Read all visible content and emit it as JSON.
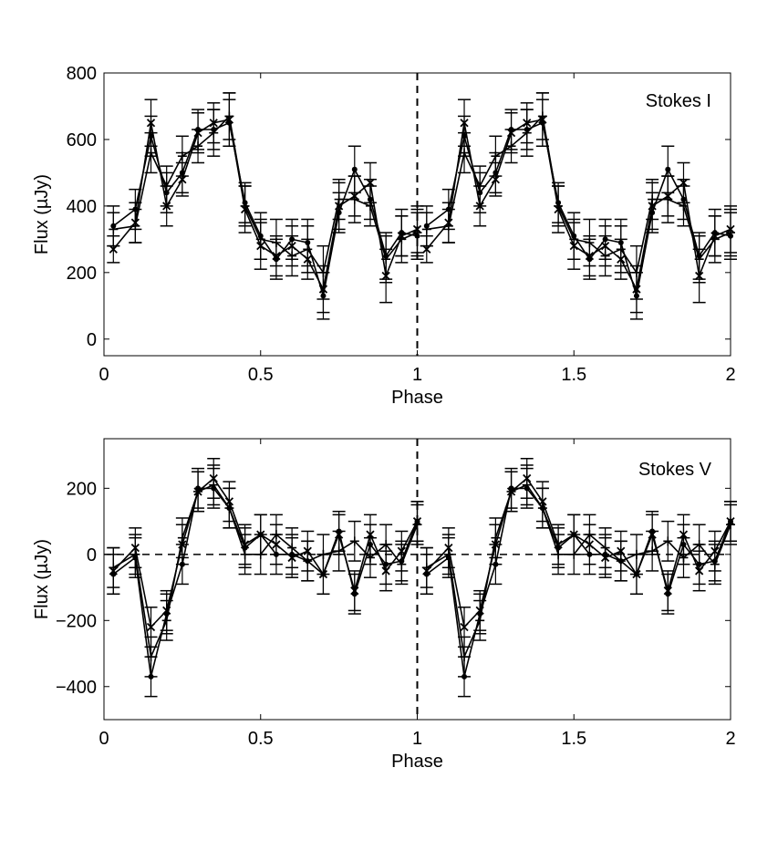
{
  "chart_data": [
    {
      "type": "line",
      "panel": "top",
      "title": "",
      "annotation": "Stokes I",
      "xlabel": "Phase",
      "ylabel": "Flux (µJy)",
      "xlim": [
        0,
        2
      ],
      "ylim": [
        -50,
        800
      ],
      "xticks": [
        "0",
        "0.5",
        "1",
        "1.5",
        "2"
      ],
      "yticks": [
        "0",
        "200",
        "400",
        "600",
        "800"
      ],
      "xtick_values": [
        0,
        0.5,
        1,
        1.5,
        2
      ],
      "ytick_values": [
        0,
        200,
        400,
        600,
        800
      ],
      "vline_x": 1,
      "hline_y": null,
      "series": [
        {
          "name": "series-1",
          "marker": "x",
          "x": [
            0.03,
            0.1,
            0.15,
            0.2,
            0.25,
            0.3,
            0.35,
            0.4,
            0.45,
            0.5,
            0.55,
            0.6,
            0.65,
            0.7,
            0.75,
            0.8,
            0.85,
            0.9,
            0.95,
            1.0
          ],
          "y": [
            270,
            350,
            650,
            400,
            480,
            620,
            650,
            660,
            390,
            280,
            250,
            280,
            240,
            150,
            400,
            430,
            470,
            190,
            310,
            330
          ],
          "err": [
            40,
            60,
            70,
            60,
            50,
            60,
            60,
            80,
            70,
            70,
            60,
            60,
            60,
            70,
            70,
            60,
            60,
            80,
            60,
            70
          ]
        },
        {
          "name": "series-2",
          "marker": "+",
          "x": [
            0.03,
            0.1,
            0.15,
            0.2,
            0.25,
            0.3,
            0.35,
            0.4,
            0.45,
            0.5,
            0.55,
            0.6,
            0.65,
            0.7,
            0.75,
            0.8,
            0.85,
            0.9,
            0.95,
            1.0
          ],
          "y": [
            330,
            340,
            560,
            460,
            550,
            580,
            620,
            670,
            400,
            300,
            290,
            250,
            270,
            200,
            420,
            420,
            400,
            240,
            300,
            320
          ],
          "err": [
            50,
            50,
            60,
            60,
            60,
            50,
            70,
            70,
            60,
            60,
            70,
            60,
            70,
            80,
            60,
            70,
            60,
            70,
            70,
            70
          ]
        },
        {
          "name": "series-3",
          "marker": "dot",
          "x": [
            0.03,
            0.1,
            0.15,
            0.2,
            0.25,
            0.3,
            0.35,
            0.4,
            0.45,
            0.5,
            0.55,
            0.6,
            0.65,
            0.7,
            0.75,
            0.8,
            0.85,
            0.9,
            0.95,
            1.0
          ],
          "y": [
            340,
            390,
            610,
            440,
            500,
            630,
            630,
            650,
            410,
            310,
            240,
            300,
            290,
            130,
            380,
            510,
            420,
            250,
            320,
            310
          ],
          "err": [
            60,
            60,
            60,
            60,
            60,
            60,
            60,
            70,
            60,
            70,
            60,
            60,
            70,
            70,
            60,
            70,
            60,
            70,
            70,
            70
          ]
        }
      ]
    },
    {
      "type": "line",
      "panel": "bottom",
      "title": "",
      "annotation": "Stokes V",
      "xlabel": "Phase",
      "ylabel": "Flux (µJy)",
      "xlim": [
        0,
        2
      ],
      "ylim": [
        -500,
        350
      ],
      "xticks": [
        "0",
        "0.5",
        "1",
        "1.5",
        "2"
      ],
      "yticks": [
        "−400",
        "−200",
        "0",
        "200"
      ],
      "xtick_values": [
        0,
        0.5,
        1,
        1.5,
        2
      ],
      "ytick_values": [
        -400,
        -200,
        0,
        200
      ],
      "vline_x": 1,
      "hline_y": 0,
      "series": [
        {
          "name": "series-1",
          "marker": "x",
          "x": [
            0.03,
            0.1,
            0.15,
            0.2,
            0.25,
            0.3,
            0.35,
            0.4,
            0.45,
            0.5,
            0.55,
            0.6,
            0.65,
            0.7,
            0.75,
            0.8,
            0.85,
            0.9,
            0.95,
            1.0
          ],
          "y": [
            -50,
            20,
            -220,
            -170,
            30,
            190,
            230,
            160,
            30,
            60,
            30,
            -10,
            10,
            -60,
            60,
            -110,
            60,
            -50,
            10,
            100
          ],
          "err": [
            70,
            60,
            60,
            60,
            60,
            60,
            60,
            60,
            60,
            60,
            60,
            60,
            60,
            60,
            60,
            60,
            60,
            60,
            60,
            60
          ]
        },
        {
          "name": "series-2",
          "marker": "+",
          "x": [
            0.03,
            0.1,
            0.15,
            0.2,
            0.25,
            0.3,
            0.35,
            0.4,
            0.45,
            0.5,
            0.55,
            0.6,
            0.65,
            0.7,
            0.75,
            0.8,
            0.85,
            0.9,
            0.95,
            1.0
          ],
          "y": [
            -40,
            0,
            -310,
            -200,
            50,
            190,
            210,
            140,
            0,
            0,
            60,
            20,
            -20,
            0,
            10,
            40,
            -10,
            30,
            -30,
            90
          ],
          "err": [
            60,
            60,
            60,
            60,
            60,
            60,
            60,
            60,
            60,
            60,
            60,
            60,
            60,
            60,
            60,
            60,
            60,
            60,
            60,
            60
          ]
        },
        {
          "name": "series-3",
          "marker": "dot",
          "x": [
            0.03,
            0.1,
            0.15,
            0.2,
            0.25,
            0.3,
            0.35,
            0.4,
            0.45,
            0.5,
            0.55,
            0.6,
            0.65,
            0.7,
            0.75,
            0.8,
            0.85,
            0.9,
            0.95,
            1.0
          ],
          "y": [
            -60,
            -10,
            -370,
            -180,
            -30,
            200,
            200,
            140,
            20,
            60,
            0,
            0,
            -20,
            -60,
            70,
            -120,
            30,
            -30,
            -20,
            100
          ],
          "err": [
            60,
            60,
            60,
            60,
            60,
            60,
            60,
            60,
            60,
            60,
            60,
            60,
            60,
            60,
            60,
            60,
            60,
            60,
            60,
            60
          ]
        }
      ]
    }
  ]
}
